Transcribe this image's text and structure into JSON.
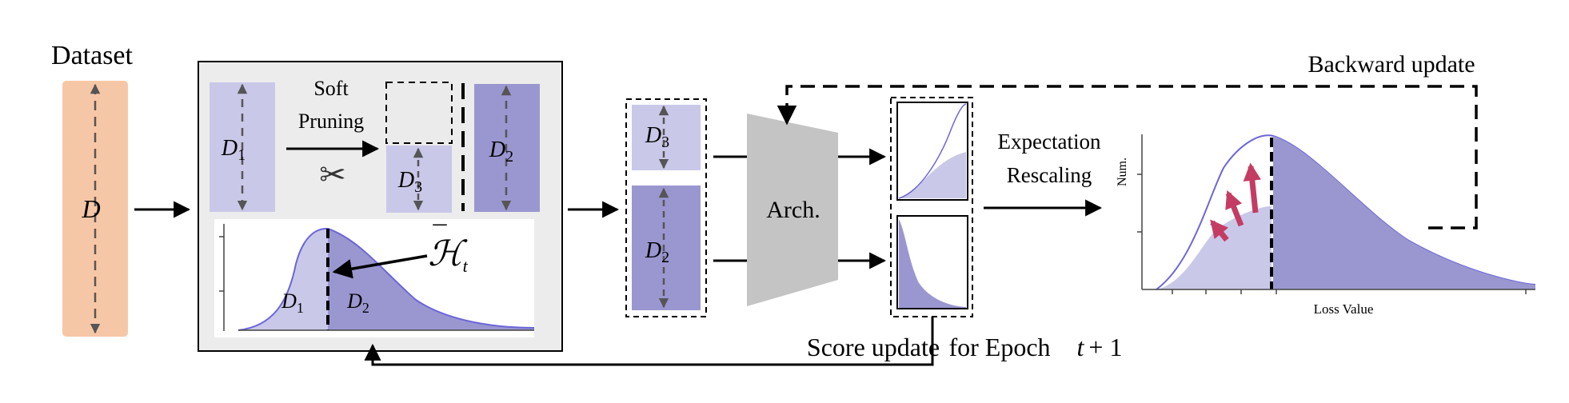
{
  "labels": {
    "dataset": "Dataset",
    "dataset_symbol": "D",
    "d1": "D",
    "d1_sub": "1",
    "d2": "D",
    "d2_sub": "2",
    "d3": "D",
    "d3_sub": "3",
    "soft_line1": "Soft",
    "soft_line2": "Pruning",
    "scissors": "✂",
    "h_main": "ℋ",
    "h_bar": "¯",
    "h_sub": "t",
    "arch": "Arch.",
    "expectation_line1": "Expectation",
    "expectation_line2": "Rescaling",
    "backward": "Backward update",
    "score": "Score update",
    "for_epoch": "for Epoch",
    "epoch_expr_t": "t",
    "epoch_expr_rest": "+ 1",
    "y_axis": "Num.",
    "x_axis": "Loss Value"
  },
  "colors": {
    "dataset_fill": "#f6c7a6",
    "light_purple": "#c9c8e8",
    "dark_purple": "#9a97d0",
    "curve_line": "#6c66d8",
    "arrow_red": "#c43c64",
    "panel_gray": "#ececec",
    "arch_gray": "#c4c4c4"
  }
}
